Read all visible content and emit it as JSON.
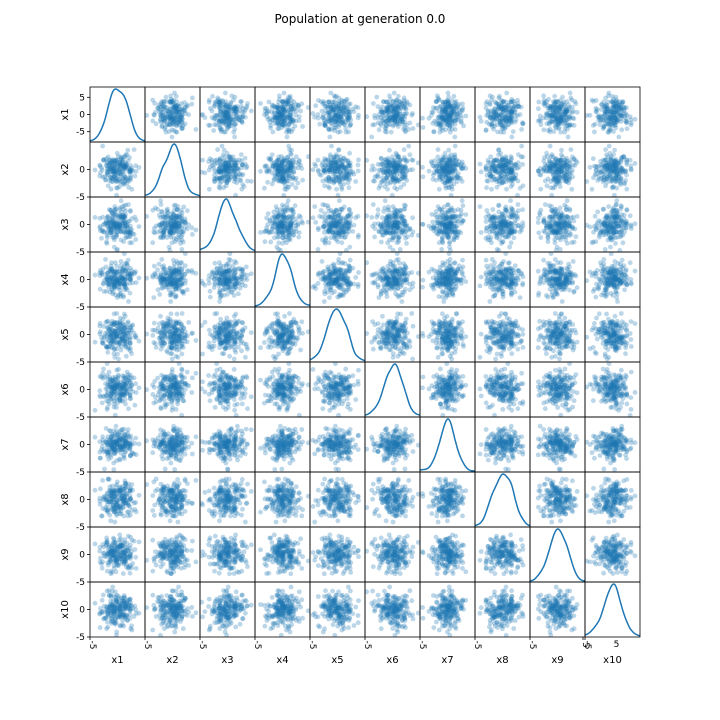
{
  "title": "Population at generation 0.0",
  "chart_data": {
    "type": "scatter",
    "variables": [
      "x1",
      "x2",
      "x3",
      "x4",
      "x5",
      "x6",
      "x7",
      "x8",
      "x9",
      "x10"
    ],
    "off_diagonal": "scatter",
    "diagonal": "kde",
    "point_color": "#1f77b4",
    "point_alpha": 0.3,
    "line_color": "#1f77b4",
    "axis_range": [
      -8,
      8
    ],
    "y_ticks": [
      -5,
      0,
      5
    ],
    "x_tick_labels": [
      "-5",
      "-5",
      "-5",
      "-5",
      "-5",
      "-5",
      "-5",
      "-5",
      "-5",
      "5",
      "-5"
    ],
    "first_row_y_tick_labels": [
      "5",
      "0",
      "-5"
    ],
    "y_tick_labels_other_rows": [
      "0",
      "-5"
    ],
    "x10_x_tick_label": "5",
    "points_per_panel": 200,
    "distribution": "standard normal, sd ≈ 2.5"
  }
}
